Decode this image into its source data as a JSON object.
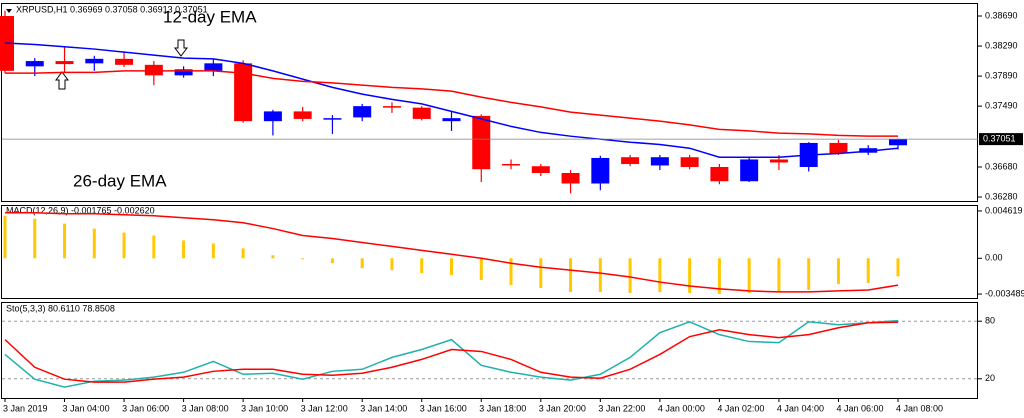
{
  "chart_data": [
    {
      "type": "candlestick",
      "title": "XRPUSD,H1  0.36969 0.37058 0.36913 0.37051",
      "annotations": [
        "12-day EMA",
        "26-day EMA"
      ],
      "categories": [
        "3 Jan 2019",
        null,
        "3 Jan 04:00",
        null,
        "3 Jan 06:00",
        null,
        "3 Jan 08:00",
        null,
        "3 Jan 10:00",
        null,
        "3 Jan 12:00",
        null,
        "3 Jan 14:00",
        null,
        "3 Jan 16:00",
        null,
        "3 Jan 18:00",
        null,
        "3 Jan 20:00",
        null,
        "3 Jan 22:00",
        null,
        "4 Jan 00:00",
        null,
        "4 Jan 02:00",
        null,
        "4 Jan 04:00",
        null,
        "4 Jan 06:00",
        null,
        "4 Jan 08:00"
      ],
      "open": [
        0.3869,
        0.3802,
        0.3809,
        0.3806,
        0.3812,
        0.3804,
        0.379,
        0.3796,
        0.3806,
        0.3729,
        0.3742,
        0.3732,
        0.3734,
        0.3749,
        0.3747,
        0.3729,
        0.3736,
        0.3672,
        0.3669,
        0.366,
        0.3646,
        0.3681,
        0.367,
        0.3681,
        0.3668,
        0.3649,
        0.3678,
        0.3668,
        0.37,
        0.3687,
        0.36969
      ],
      "high": [
        0.3876,
        0.3813,
        0.3829,
        0.3816,
        0.3822,
        0.3809,
        0.3802,
        0.3812,
        0.381,
        0.3744,
        0.3748,
        0.3737,
        0.3752,
        0.3754,
        0.3749,
        0.3742,
        0.3738,
        0.3678,
        0.3672,
        0.3664,
        0.3683,
        0.3684,
        0.3684,
        0.3684,
        0.3672,
        0.3681,
        0.3684,
        0.3701,
        0.3704,
        0.3697,
        0.37058
      ],
      "low": [
        0.3793,
        0.3789,
        0.3793,
        0.3796,
        0.3801,
        0.3777,
        0.3787,
        0.3789,
        0.3727,
        0.371,
        0.3729,
        0.3712,
        0.3729,
        0.374,
        0.373,
        0.3716,
        0.3648,
        0.3665,
        0.3656,
        0.3633,
        0.3637,
        0.3669,
        0.3664,
        0.3665,
        0.3645,
        0.3648,
        0.3664,
        0.3662,
        0.3684,
        0.3684,
        0.36913
      ],
      "close": [
        0.3796,
        0.3809,
        0.3805,
        0.3812,
        0.3804,
        0.379,
        0.3798,
        0.3806,
        0.3729,
        0.3742,
        0.3732,
        0.3733,
        0.3749,
        0.3747,
        0.3732,
        0.3733,
        0.3665,
        0.367,
        0.366,
        0.3646,
        0.368,
        0.3672,
        0.3681,
        0.3668,
        0.3649,
        0.3678,
        0.3674,
        0.37,
        0.3686,
        0.3693,
        0.37051
      ],
      "up_color": "#0000ff",
      "down_color": "#ff0000",
      "series": [
        {
          "name": "12-day EMA",
          "color": "#0000ff",
          "values": [
            0.3833,
            0.3831,
            0.3828,
            0.3825,
            0.3821,
            0.3817,
            0.3813,
            0.3812,
            0.3806,
            0.3796,
            0.3785,
            0.3774,
            0.3765,
            0.3758,
            0.3752,
            0.3742,
            0.3732,
            0.3722,
            0.3714,
            0.3709,
            0.3705,
            0.3701,
            0.3698,
            0.3693,
            0.3681,
            0.3681,
            0.3681,
            0.3684,
            0.3686,
            0.3689,
            0.3693
          ]
        },
        {
          "name": "26-day EMA",
          "color": "#ff0000",
          "values": [
            0.3793,
            0.3793,
            0.3794,
            0.3794,
            0.3796,
            0.3796,
            0.3796,
            0.3796,
            0.3793,
            0.3786,
            0.3782,
            0.378,
            0.3777,
            0.3774,
            0.3772,
            0.3769,
            0.3761,
            0.3754,
            0.3748,
            0.3741,
            0.3737,
            0.3733,
            0.3729,
            0.3724,
            0.3718,
            0.3716,
            0.3713,
            0.3712,
            0.371,
            0.3709,
            0.3709
          ]
        }
      ],
      "current_price": {
        "value": 0.37051,
        "label": "0.37051"
      },
      "ylim": [
        0.36227,
        0.3885
      ],
      "yticks": [
        {
          "value": 0.3869,
          "label": "0.38690"
        },
        {
          "value": 0.3829,
          "label": "0.38290"
        },
        {
          "value": 0.3789,
          "label": "0.37890"
        },
        {
          "value": 0.3749,
          "label": "0.37490"
        },
        {
          "value": 0.3668,
          "label": "0.36680"
        },
        {
          "value": 0.3628,
          "label": "0.36280"
        }
      ]
    },
    {
      "type": "macd",
      "title": "MACD(12,26,9) -0.001765 -0.002620",
      "color": "#ffc800",
      "values": [
        0.00415,
        0.00386,
        0.00338,
        0.0029,
        0.00251,
        0.00222,
        0.00174,
        0.00145,
        0.00097,
        0.00029,
        -0.0001,
        -0.00048,
        -0.00097,
        -0.00116,
        -0.00145,
        -0.00164,
        -0.00212,
        -0.00261,
        -0.0029,
        -0.00328,
        -0.00328,
        -0.00338,
        -0.00328,
        -0.00338,
        -0.00347,
        -0.00338,
        -0.00328,
        -0.00309,
        -0.00251,
        -0.00241,
        -0.001765
      ],
      "signal_color": "#ff0000",
      "signal_values": [
        0.00444,
        0.00444,
        0.00434,
        0.00434,
        0.00425,
        0.00415,
        0.00396,
        0.00376,
        0.00347,
        0.0029,
        0.00222,
        0.00193,
        0.00154,
        0.00116,
        0.00077,
        0.00039,
        0,
        -0.00048,
        -0.00087,
        -0.00116,
        -0.00145,
        -0.00183,
        -0.00232,
        -0.0027,
        -0.00299,
        -0.00318,
        -0.00328,
        -0.00328,
        -0.00318,
        -0.00309,
        -0.00262
      ],
      "ylim": [
        -0.003875,
        0.005101
      ],
      "yticks": [
        0.004619,
        {
          "value": 0,
          "label": "0.00"
        },
        -0.003489
      ]
    },
    {
      "type": "stochastic",
      "title": "Sto(5,3,3) 80.6110 78.8508",
      "lines": [
        {
          "color": "#20b2aa",
          "values": [
            45.4,
            19.6,
            11.3,
            17.5,
            18.6,
            21.7,
            26.8,
            38.1,
            24.7,
            25.8,
            19.6,
            27.8,
            29.9,
            42.3,
            50.5,
            60.8,
            34.0,
            26.8,
            21.7,
            18.6,
            24.7,
            42.3,
            68.0,
            79.4,
            66.0,
            58.8,
            57.7,
            79.4,
            76.3,
            78.4,
            80.611
          ]
        },
        {
          "color": "#ff0000",
          "values": [
            60.8,
            32.0,
            19.6,
            16.5,
            16.5,
            19.6,
            21.7,
            27.8,
            29.9,
            29.9,
            24.7,
            23.7,
            25.8,
            32.0,
            40.2,
            50.5,
            48.5,
            40.2,
            26.8,
            21.7,
            20.6,
            29.9,
            45.4,
            63.9,
            71.1,
            66.0,
            62.9,
            66.0,
            73.2,
            78.4,
            78.8508
          ]
        }
      ],
      "ylim": [
        0,
        100
      ],
      "yticks": [
        80,
        20
      ]
    }
  ]
}
